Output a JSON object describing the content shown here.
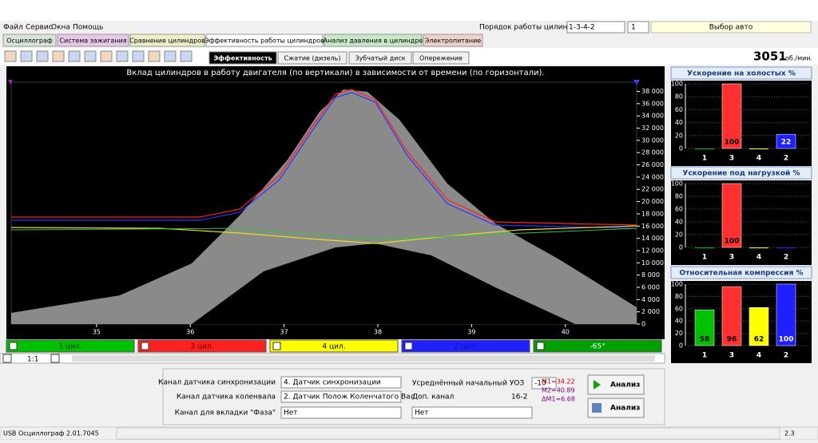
{
  "menu": [
    "Файл",
    "Сервис",
    "Окна",
    "Помощь"
  ],
  "cylinder_order_label": "Порядок работы цилиндров",
  "cylinder_order": "1-3-4-2",
  "spin_value": "1",
  "car_select": "Выбор авто",
  "tabs": [
    "Осциллограф",
    "Система зажигания",
    "Сравнение цилиндров",
    "Эффективность работы цилиндров",
    "Анализ давления в цилиндре",
    "Электропитание"
  ],
  "subtabs": [
    "Эффективность",
    "Сжатие (дизель)",
    "Зубчатый диск",
    "Опережение"
  ],
  "rpm": "3051",
  "rpm_unit": "об./мин.",
  "chart_data": [
    {
      "type": "line",
      "title": "Вклад цилиндров в работу двигателя (по вертикали) в зависимости от времени (по горизонтали).",
      "xlim": [
        34.09,
        40.76
      ],
      "xticks": [
        35,
        36,
        37,
        38,
        39,
        40
      ],
      "ylim": [
        0,
        39500
      ],
      "yticks": [
        0,
        {
          "value": 2000,
          "label": "2 000"
        },
        {
          "value": 4000,
          "label": "4 000"
        },
        {
          "value": 6000,
          "label": "6 000"
        },
        {
          "value": 8000,
          "label": "8 000"
        },
        {
          "value": 10000,
          "label": "10 000"
        },
        {
          "value": 12000,
          "label": "12 000"
        },
        {
          "value": 14000,
          "label": "14 000"
        },
        {
          "value": 16000,
          "label": "16 000"
        },
        {
          "value": 18000,
          "label": "18 000"
        },
        {
          "value": 20000,
          "label": "20 000"
        },
        {
          "value": 22000,
          "label": "22 000"
        },
        {
          "value": 24000,
          "label": "24 000"
        },
        {
          "value": 26000,
          "label": "26 000"
        },
        {
          "value": 28000,
          "label": "28 000"
        },
        {
          "value": 30000,
          "label": "30 000"
        },
        {
          "value": 32000,
          "label": "32 000"
        },
        {
          "value": 34000,
          "label": "34 000"
        },
        {
          "value": 36000,
          "label": "36 000"
        },
        {
          "value": 38000,
          "label": "38 000"
        }
      ]
    },
    {
      "type": "bar",
      "title": "Ускорение на холостых %",
      "categories": [
        "1",
        "3",
        "4",
        "2"
      ],
      "colors": [
        "#00c000",
        "#ff3030",
        "#ffff00",
        "#2020ff"
      ],
      "values": [
        0,
        100,
        0,
        22
      ],
      "value_labels": [
        null,
        "100",
        null,
        "22"
      ],
      "ylim": [
        0,
        100
      ],
      "yticks": [
        0,
        20,
        40,
        60,
        80,
        100
      ]
    },
    {
      "type": "bar",
      "title": "Ускорение под нагрузкой %",
      "categories": [
        "1",
        "3",
        "4",
        "2"
      ],
      "colors": [
        "#00c000",
        "#ff3030",
        "#ffff00",
        "#2020ff"
      ],
      "values": [
        0,
        100,
        0,
        0
      ],
      "value_labels": [
        null,
        "100",
        null,
        null
      ],
      "ylim": [
        0,
        100
      ],
      "yticks": [
        0,
        20,
        40,
        60,
        80,
        100
      ]
    },
    {
      "type": "bar",
      "title": "Относительная компрессия %",
      "categories": [
        "1",
        "3",
        "4",
        "2"
      ],
      "colors": [
        "#00c000",
        "#ff3030",
        "#ffff00",
        "#2020ff"
      ],
      "values": [
        58,
        96,
        62,
        100
      ],
      "value_labels": [
        "58",
        "96",
        "62",
        "100"
      ],
      "ylim": [
        0,
        100
      ],
      "yticks": [
        0,
        20,
        40,
        60,
        80,
        100
      ]
    }
  ],
  "legend": [
    "1 цил.",
    "3 цил.",
    "4 цил.",
    "2 цил.",
    "-65°"
  ],
  "zoom": "1:1",
  "panel": {
    "sync_label": "Канал датчика синхронизации",
    "sync_value": "4. Датчик синхронизации",
    "crank_label": "Канал датчика коленвала",
    "crank_value": "2. Датчик Полож Коленчатого Вал",
    "phase_label": "Канал для вкладки \"Фаза\"",
    "phase_value": "Нет",
    "uoz_label": "Усреднённый начальный УОЗ",
    "uoz_value": "-10",
    "extra_label": "Доп. канал",
    "extra_info": "16-2",
    "extra_value": "Нет",
    "m1": "M1=34.22",
    "m2": "M2=40.89",
    "dm": "ΔM1=6.68",
    "button1": "Анализ",
    "button2": "Анализ"
  },
  "status": [
    "USB Осциллограф  2.01.7045",
    "2.3"
  ]
}
